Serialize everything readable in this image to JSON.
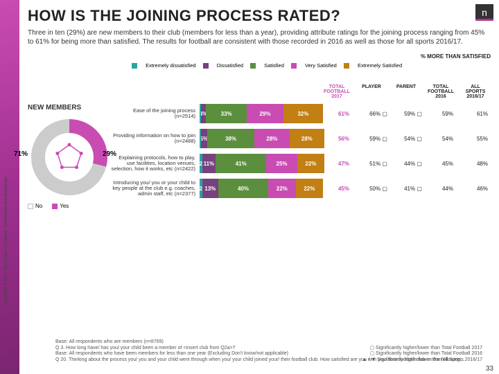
{
  "slide": {
    "title": "HOW IS THE JOINING PROCESS RATED?",
    "subtitle": "Three in ten (29%) are new members to their club (members for less than a year), providing attribute ratings for the joining process ranging from 45% to 61% for being more than satisfied. The results for football are consistent with those recorded in 2016 as well as those for all sports 2016/17.",
    "mts_label": "% MORE THAN SATISFIED",
    "page_number": "33",
    "vertical_text": "Copyright © 2017 The Nielsen Company. Confidential and proprietary."
  },
  "donut": {
    "heading": "NEW MEMBERS",
    "no_pct": 71,
    "yes_pct": 29,
    "no_label": "71%",
    "yes_label": "29%",
    "no_color": "#ffffff",
    "no_border": "#bbbbbb",
    "yes_color": "#c94cb3",
    "pentagon_stroke": "#c94cb3",
    "legend_no": "No",
    "legend_yes": "Yes"
  },
  "columns": {
    "c1": "TOTAL FOOTBALL 2017",
    "c2": "PLAYER",
    "c3": "PARENT",
    "c4": "TOTAL FOOTBALL 2016",
    "c5": "ALL SPORTS 2016/17"
  },
  "rows": [
    {
      "label": "Ease of the joining process (n=2514)",
      "segs": [
        1,
        4,
        33,
        29,
        32
      ],
      "seg_labels": [
        "",
        "4%",
        "33%",
        "29%",
        "32%"
      ],
      "figs": [
        "61%",
        "66% ▢",
        "59% ▢",
        "59%",
        "61%"
      ]
    },
    {
      "label": "Providing information on how to join (n=2488)",
      "segs": [
        1,
        5,
        38,
        28,
        28
      ],
      "seg_labels": [
        "",
        "5%",
        "38%",
        "28%",
        "28%"
      ],
      "figs": [
        "56%",
        "59% ▢",
        "54% ▢",
        "54%",
        "55%"
      ]
    },
    {
      "label": "Explaining protocols, how to play, use facilities, location venues, selection, how it works, etc (n=2422)",
      "segs": [
        2,
        11,
        41,
        25,
        22
      ],
      "seg_labels": [
        "2",
        "11%",
        "41%",
        "25%",
        "22%"
      ],
      "figs": [
        "47%",
        "51% ▢",
        "44% ▢",
        "45%",
        "48%"
      ]
    },
    {
      "label": "Introducing you/ you or your child to key people at the club e.g. coaches, admin staff, etc (n=2377)",
      "segs": [
        2,
        13,
        40,
        22,
        22
      ],
      "seg_labels": [
        "2",
        "13%",
        "40%",
        "22%",
        "22%"
      ],
      "figs": [
        "45%",
        "50% ▢",
        "41% ▢",
        "44%",
        "46%"
      ]
    }
  ],
  "seg_colors": [
    "#2aa4a0",
    "#77417f",
    "#5b8f3e",
    "#c94cb3",
    "#c17f14"
  ],
  "series": {
    "s1": "Extremely dissatisfied",
    "s2": "Dissatisfied",
    "s3": "Satisfied",
    "s4": "Very Satisfied",
    "s5": "Extremely Satisfied"
  },
  "footer": {
    "l1": "Base: All respondents who are members (n=8769)",
    "l2": "Q 3. How long have/ has you/ your child been a member of <insert club from Q2a>?",
    "l3": "Base: All respondents who have been members for less than one year (Excluding Don't know/not applicable)",
    "l4": "Q 20. Thinking about the process you/ you and your child went through when you/ your child joined your/ their football club. How satisfied are you with you/ their football club on the following…",
    "r1": "▢ Significantly higher/lower than Total Football 2017",
    "r2": "▢ Significantly higher/lower than Total Football 2016",
    "r3": "▲ / ▼ Significantly higher/lower than All Sports 2016/17"
  }
}
